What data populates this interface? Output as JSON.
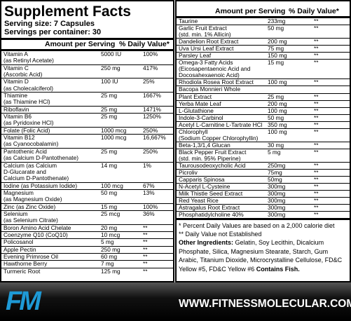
{
  "left": {
    "title": "Supplement Facts",
    "serving_size": "Serving size: 7 Capsules",
    "servings": "Servings per container: 30",
    "header": {
      "amount": "Amount per Serving",
      "dv": "% Daily Value*"
    },
    "rows": [
      {
        "name": [
          "Vitamin A",
          "(as Retinyl Acetate)"
        ],
        "amount": "5000 IU",
        "dv": "100%"
      },
      {
        "name": [
          "Vitamin C",
          "(Ascorbic Acid)"
        ],
        "amount": "250 mg",
        "dv": "417%"
      },
      {
        "name": [
          "Vitamin D",
          "(as Cholecalciferol)"
        ],
        "amount": "100 IU",
        "dv": "25%"
      },
      {
        "name": [
          "Thiamine",
          "(as Thiamine HCl)"
        ],
        "amount": "25 mg",
        "dv": "1667%"
      },
      {
        "name": [
          "Riboflavin"
        ],
        "amount": "25 mg",
        "dv": "1471%"
      },
      {
        "name": [
          "Vitamin B6",
          "(as Pyridoxine HCl)"
        ],
        "amount": "25 mg",
        "dv": "1250%"
      },
      {
        "name": [
          "Folate (Folic Acid)"
        ],
        "amount": "1000 mcg",
        "dv": "250%"
      },
      {
        "name": [
          "Vitamin B12",
          "(as Cyanocobalamin)"
        ],
        "amount": "1000 mcg",
        "dv": "16,667%"
      },
      {
        "name": [
          "Pantothenic Acid",
          "(as Calcium D-Pantothenate)"
        ],
        "amount": "25 mg",
        "dv": "250%"
      },
      {
        "name": [
          "Calcium (as Calcium",
          "D-Glucarate and",
          "Calcium D-Pantothenate)"
        ],
        "amount": "14 mg",
        "dv": "1%"
      },
      {
        "name": [
          "Iodine (as Potassium Iodide)"
        ],
        "amount": "100 mcg",
        "dv": "67%"
      },
      {
        "name": [
          "Magnesium",
          "(as Magnesium Oxide)"
        ],
        "amount": "50 mg",
        "dv": "13%"
      },
      {
        "name": [
          "Zinc (as Zinc Oxide)"
        ],
        "amount": "15 mg",
        "dv": "100%"
      },
      {
        "name": [
          "Selenium",
          "(as Selenium Citrate)"
        ],
        "amount": "25 mcg",
        "dv": "36%"
      },
      {
        "name": [
          "Boron Amino Acid Chelate"
        ],
        "amount": "20 mg",
        "dv": "**"
      },
      {
        "name": [
          "Coenzyme Q10 (CoQ10)"
        ],
        "amount": "10 mcg",
        "dv": "**"
      },
      {
        "name": [
          "Policosanol"
        ],
        "amount": "5 mg",
        "dv": "**"
      },
      {
        "name": [
          "Apple Pectin"
        ],
        "amount": "250 mg",
        "dv": "**"
      },
      {
        "name": [
          "Evening Primrose Oil"
        ],
        "amount": "60 mg",
        "dv": "**"
      },
      {
        "name": [
          "Hawthorne Berry"
        ],
        "amount": "7 mg",
        "dv": "**"
      },
      {
        "name": [
          "Turmeric Root"
        ],
        "amount": "125 mg",
        "dv": "**"
      }
    ]
  },
  "right": {
    "header": {
      "amount": "Amount per Serving",
      "dv": "% Daily Value*"
    },
    "rows": [
      {
        "name": [
          "Taurine"
        ],
        "amount": "233mg",
        "dv": "**"
      },
      {
        "name": [
          "Garlic Fruit Extract",
          "(std. min. 1% Allicin)"
        ],
        "amount": "50 mg",
        "dv": "**"
      },
      {
        "name": [
          "Dandelion Root Extract"
        ],
        "amount": "200 mg",
        "dv": "**"
      },
      {
        "name": [
          "Uva Ursi Leaf Extract"
        ],
        "amount": "75 mg",
        "dv": "**"
      },
      {
        "name": [
          "Parsley Leaf"
        ],
        "amount": "150 mg",
        "dv": "**"
      },
      {
        "name": [
          "Omega-3 Fatty Acids",
          "(Eicosapentaenoic Acid and",
          "Docosahexaenoic Acid)"
        ],
        "amount": "15 mg",
        "dv": "**"
      },
      {
        "name": [
          "Rhodiola Rosea Root Extract"
        ],
        "amount": "100 mg",
        "dv": "**"
      },
      {
        "name": [
          "Bacopa Monnieri Whole"
        ],
        "amount": "",
        "dv": ""
      },
      {
        "name": [
          "Plant Extract"
        ],
        "amount": "25 mg",
        "dv": "**"
      },
      {
        "name": [
          "Yerba Mate Leaf"
        ],
        "amount": "200 mg",
        "dv": "**"
      },
      {
        "name": [
          "L-Glutathione"
        ],
        "amount": "100 mg",
        "dv": "**"
      },
      {
        "name": [
          "Indole-3-Carbinol"
        ],
        "amount": "50 mg",
        "dv": "**"
      },
      {
        "name": [
          "Acetyl L-Carnitine L-Tartrate HCl"
        ],
        "amount": "350 mg",
        "dv": "**"
      },
      {
        "name": [
          "Chlorophyll",
          "(Sodium Copper Chlorophyllin)"
        ],
        "amount": "100 mg",
        "dv": "**"
      },
      {
        "name": [
          "Beta-1,3/1,4 Glucan"
        ],
        "amount": "30 mg",
        "dv": "**"
      },
      {
        "name": [
          "Black Pepper Fruit Extract",
          "(std. min. 95% Piperine)"
        ],
        "amount": "5 mg",
        "dv": "**"
      },
      {
        "name": [
          "Taurousodeoxycholic Acid"
        ],
        "amount": "250mg",
        "dv": "**"
      },
      {
        "name": [
          "Picroliv"
        ],
        "amount": "75mg",
        "dv": "**"
      },
      {
        "name": [
          "Capparis Spinosa"
        ],
        "amount": "50mg",
        "dv": "**"
      },
      {
        "name": [
          "N-Acetyl L-Cysteine"
        ],
        "amount": "300mg",
        "dv": "**"
      },
      {
        "name": [
          "Milk Thistle Seed Extract"
        ],
        "amount": "300mg",
        "dv": "**"
      },
      {
        "name": [
          "Red Yeast Rice"
        ],
        "amount": "300mg",
        "dv": "**"
      },
      {
        "name": [
          "Astragalus Root Extract"
        ],
        "amount": "300mg",
        "dv": "**"
      },
      {
        "name": [
          "Phosphatidylcholine 40%"
        ],
        "amount": "300mg",
        "dv": "**"
      }
    ],
    "footnote1": "* Percent Daily Values are based on a 2,000 calorie diet",
    "footnote2": "** Daily Value not Established",
    "other_label": "Other Ingredients:",
    "other_text": "Gelatin, Soy Lecithin, Dicalcium Phosphate, Silica, Magnesium Stearate, Starch, Gum Arabic, Titanium Dioxide, Microcrystalline Cellulose, FD&C Yellow #5, FD&C Yellow #6",
    "contains": "Contains Fish."
  },
  "footer": {
    "logo": "FM",
    "url": "WWW.FITNESSMOLECULAR.COM"
  }
}
